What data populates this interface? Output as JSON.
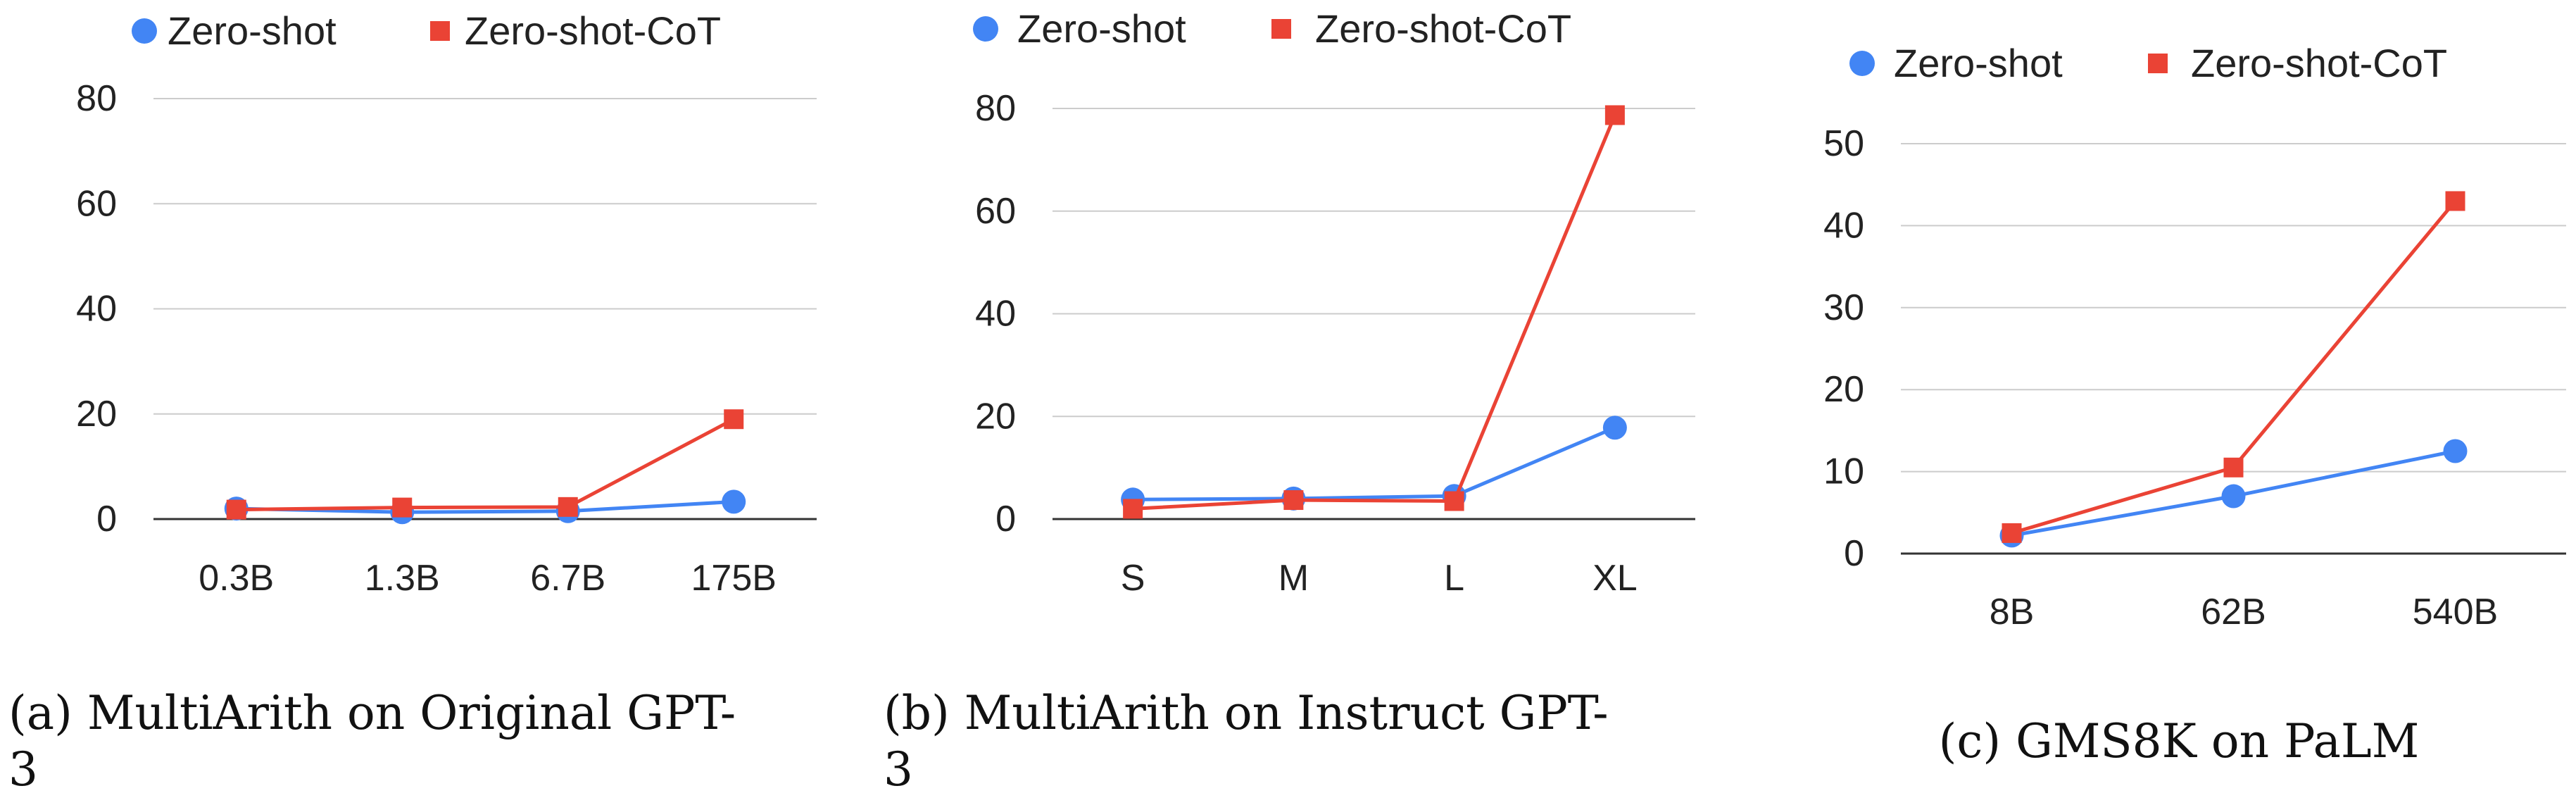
{
  "colors": {
    "zero_shot": "#4285f4",
    "zero_shot_cot": "#ea4335",
    "grid": "#cccccc",
    "axis": "#333333"
  },
  "chart_data": [
    {
      "type": "line",
      "caption_line1": "(a) MultiArith on Original GPT-",
      "caption_line2": "3",
      "categories": [
        "0.3B",
        "1.3B",
        "6.7B",
        "175B"
      ],
      "ylim": [
        0,
        80
      ],
      "yticks": [
        0,
        20,
        40,
        60,
        80
      ],
      "grid": true,
      "legend_position": "top",
      "series": [
        {
          "name": "Zero-shot",
          "marker": "circle",
          "values": [
            2.0,
            1.3,
            1.5,
            3.3
          ]
        },
        {
          "name": "Zero-shot-CoT",
          "marker": "square",
          "values": [
            1.8,
            2.2,
            2.3,
            19.0
          ]
        }
      ]
    },
    {
      "type": "line",
      "caption_line1": "(b) MultiArith on Instruct GPT-",
      "caption_line2": "3",
      "categories": [
        "S",
        "M",
        "L",
        "XL"
      ],
      "ylim": [
        0,
        80
      ],
      "yticks": [
        0,
        20,
        40,
        60,
        80
      ],
      "grid": true,
      "legend_position": "top",
      "series": [
        {
          "name": "Zero-shot",
          "marker": "circle",
          "values": [
            3.8,
            4.0,
            4.5,
            17.8
          ]
        },
        {
          "name": "Zero-shot-CoT",
          "marker": "square",
          "values": [
            2.0,
            3.7,
            3.5,
            78.7
          ]
        }
      ]
    },
    {
      "type": "line",
      "caption_line1": "(c) GMS8K on PaLM",
      "caption_line2": "",
      "categories": [
        "8B",
        "62B",
        "540B"
      ],
      "ylim": [
        0,
        50
      ],
      "yticks": [
        0,
        10,
        20,
        30,
        40,
        50
      ],
      "grid": true,
      "legend_position": "top",
      "series": [
        {
          "name": "Zero-shot",
          "marker": "circle",
          "values": [
            2.2,
            7.0,
            12.5
          ]
        },
        {
          "name": "Zero-shot-CoT",
          "marker": "square",
          "values": [
            2.5,
            10.5,
            43.0
          ]
        }
      ]
    }
  ]
}
